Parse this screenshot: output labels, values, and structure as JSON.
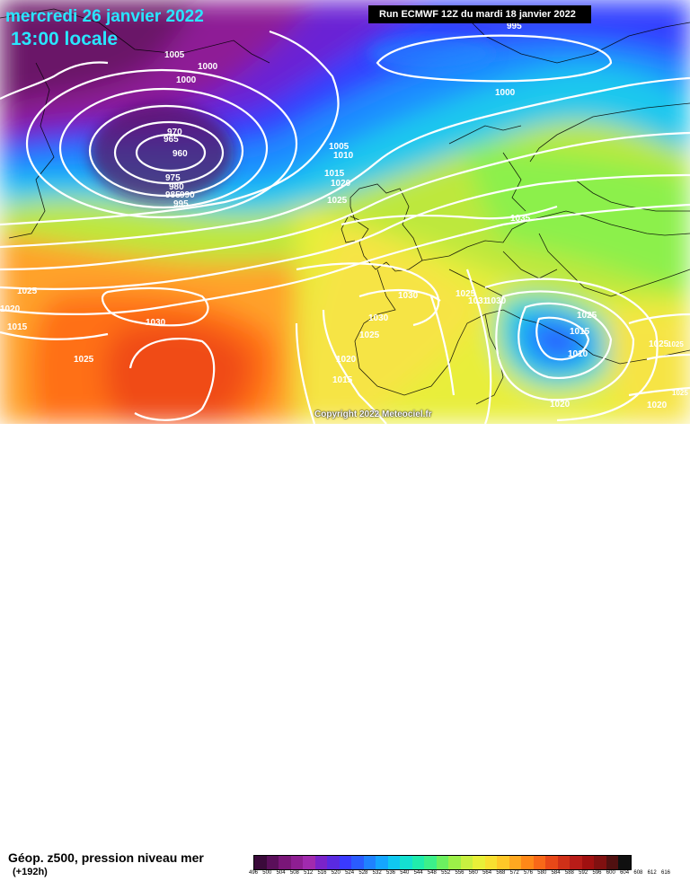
{
  "header": {
    "date": "mercredi 26 janvier 2022",
    "time": "13:00 locale",
    "run": "Run ECMWF 12Z du mardi 18 janvier 2022"
  },
  "footer": {
    "title": "Géop. z500, pression niveau mer",
    "subtitle": "(+192h)",
    "copyright": "Copyright 2022 Meteociel.fr"
  },
  "scale": {
    "ticks": [
      "496",
      "500",
      "504",
      "508",
      "512",
      "516",
      "520",
      "524",
      "528",
      "532",
      "536",
      "540",
      "544",
      "548",
      "552",
      "556",
      "560",
      "564",
      "568",
      "572",
      "576",
      "580",
      "584",
      "588",
      "592",
      "596",
      "600",
      "604",
      "608",
      "612",
      "616"
    ],
    "colors": [
      "#3a0a3a",
      "#5a0f5a",
      "#7a1678",
      "#8e1e92",
      "#a12aae",
      "#7a23c9",
      "#5a2ae0",
      "#3a3aff",
      "#2a5cff",
      "#1f82ff",
      "#15a6ff",
      "#10c8f0",
      "#14e0d0",
      "#20ecac",
      "#3cf08a",
      "#6cf060",
      "#9cf048",
      "#c8f040",
      "#e8f038",
      "#f8e030",
      "#ffc828",
      "#ffa820",
      "#ff8818",
      "#f86818",
      "#e84818",
      "#d03018",
      "#b81c18",
      "#a01010",
      "#801010",
      "#501010",
      "#101010"
    ]
  },
  "isobars": [
    {
      "text": "995",
      "id": "i995a"
    },
    {
      "text": "1005",
      "id": "i1005a"
    },
    {
      "text": "1000",
      "id": "i1000a"
    },
    {
      "text": "1000",
      "id": "i1000b"
    },
    {
      "text": "970",
      "id": "i970"
    },
    {
      "text": "965",
      "id": "i965"
    },
    {
      "text": "960",
      "id": "i960"
    },
    {
      "text": "975",
      "id": "i975"
    },
    {
      "text": "980",
      "id": "i980"
    },
    {
      "text": "985",
      "id": "i985"
    },
    {
      "text": "990",
      "id": "i990"
    },
    {
      "text": "995",
      "id": "i995b"
    },
    {
      "text": "1000",
      "id": "i1000c"
    },
    {
      "text": "1005",
      "id": "i1005b"
    },
    {
      "text": "1010",
      "id": "i1010a"
    },
    {
      "text": "1015",
      "id": "i1015a"
    },
    {
      "text": "1020",
      "id": "i1020a"
    },
    {
      "text": "1025",
      "id": "i1025a"
    },
    {
      "text": "1035",
      "id": "i1035"
    },
    {
      "text": "1025",
      "id": "i1025b"
    },
    {
      "text": "1020",
      "id": "i1020b"
    },
    {
      "text": "1015",
      "id": "i1015b"
    },
    {
      "text": "1030",
      "id": "i1030a"
    },
    {
      "text": "1030",
      "id": "i1030b"
    },
    {
      "text": "1025",
      "id": "i1025c"
    },
    {
      "text": "1030",
      "id": "i1030c"
    },
    {
      "text": "1025",
      "id": "i1025d"
    },
    {
      "text": "1025",
      "id": "i1025e"
    },
    {
      "text": "1025",
      "id": "i1025f"
    },
    {
      "text": "1020",
      "id": "i1020c"
    },
    {
      "text": "1015",
      "id": "i1015c"
    },
    {
      "text": "1025",
      "id": "i1025g"
    },
    {
      "text": "1031",
      "id": "i1031"
    },
    {
      "text": "1030",
      "id": "i1030d"
    },
    {
      "text": "1025",
      "id": "i1025h"
    },
    {
      "text": "1015",
      "id": "i1015d"
    },
    {
      "text": "1010",
      "id": "i1010b"
    },
    {
      "text": "1025",
      "id": "i1025i"
    },
    {
      "text": "1020",
      "id": "i1020d"
    },
    {
      "text": "1020",
      "id": "i1020e"
    }
  ]
}
